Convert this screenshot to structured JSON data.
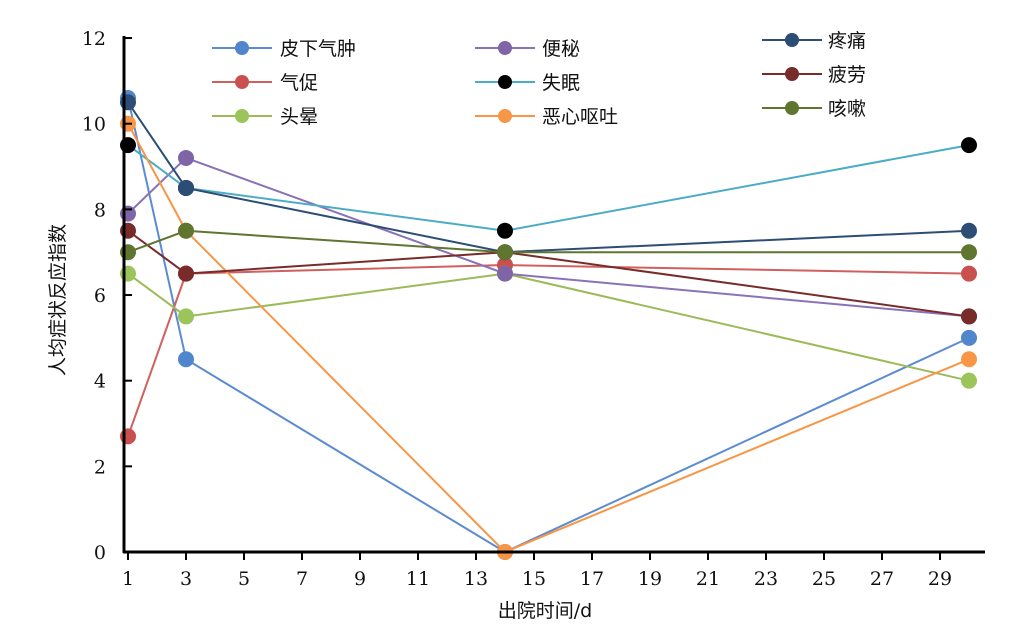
{
  "chart_data": {
    "type": "line",
    "title": "",
    "xlabel": "出院时间/d",
    "ylabel": "人均症状反应指数",
    "xlim": [
      1,
      30.5
    ],
    "ylim": [
      0,
      12
    ],
    "xticks": [
      1,
      3,
      5,
      7,
      9,
      11,
      13,
      15,
      17,
      19,
      21,
      23,
      25,
      27,
      29
    ],
    "yticks": [
      0,
      2,
      4,
      6,
      8,
      10,
      12
    ],
    "legend_placement": "top",
    "x": [
      1,
      3,
      14,
      30
    ],
    "series": [
      {
        "name": "皮下气肿",
        "line_color": "#5b8bd0",
        "marker_color": "#4f86cc",
        "values": [
          10.6,
          4.5,
          0,
          5
        ]
      },
      {
        "name": "气促",
        "line_color": "#d0605e",
        "marker_color": "#c9504e",
        "values": [
          2.7,
          6.5,
          6.7,
          6.5
        ]
      },
      {
        "name": "头晕",
        "line_color": "#9bbb59",
        "marker_color": "#9bc55a",
        "values": [
          6.5,
          5.5,
          6.5,
          4
        ]
      },
      {
        "name": "便秘",
        "line_color": "#8a72b8",
        "marker_color": "#8064a8",
        "values": [
          7.9,
          9.2,
          6.5,
          5.5
        ]
      },
      {
        "name": "失眠",
        "line_color": "#4bacc6",
        "marker_color": "#000000",
        "values": [
          9.5,
          8.5,
          7.5,
          9.5
        ]
      },
      {
        "name": "恶心呕吐",
        "line_color": "#f79646",
        "marker_color": "#f79646",
        "values": [
          10,
          7.5,
          0,
          4.5
        ]
      },
      {
        "name": "疼痛",
        "line_color": "#2c4d75",
        "marker_color": "#2c4d75",
        "values": [
          10.5,
          8.5,
          7,
          7.5
        ]
      },
      {
        "name": "疲劳",
        "line_color": "#772c2a",
        "marker_color": "#772c2a",
        "values": [
          7.5,
          6.5,
          7,
          5.5
        ]
      },
      {
        "name": "咳嗽",
        "line_color": "#5f7530",
        "marker_color": "#5f7530",
        "values": [
          7,
          7.5,
          7,
          7
        ]
      }
    ]
  }
}
